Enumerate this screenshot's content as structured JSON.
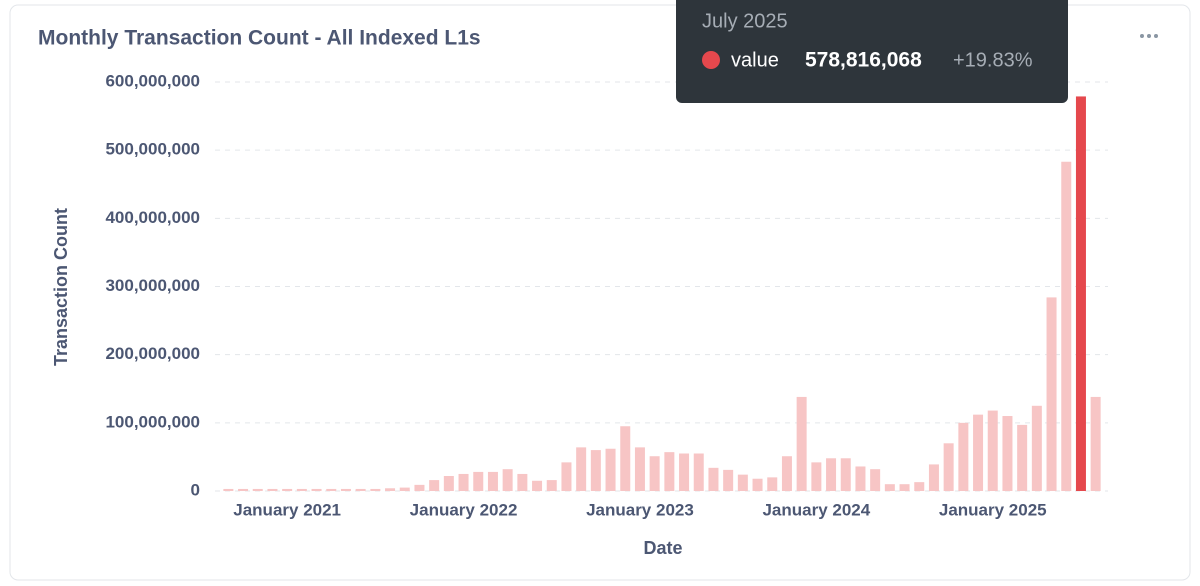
{
  "chart_data": {
    "type": "bar",
    "title": "Monthly Transaction Count - All Indexed L1s",
    "x_label": "Date",
    "y_label": "Transaction Count",
    "categories": [
      null,
      null,
      null,
      null,
      "January 2021",
      null,
      null,
      null,
      null,
      null,
      null,
      null,
      null,
      null,
      null,
      null,
      "January 2022",
      null,
      null,
      null,
      null,
      null,
      null,
      null,
      null,
      null,
      null,
      null,
      "January 2023",
      null,
      null,
      null,
      null,
      null,
      null,
      null,
      null,
      null,
      null,
      null,
      "January 2024",
      null,
      null,
      null,
      null,
      null,
      null,
      null,
      null,
      null,
      null,
      null,
      "January 2025",
      null,
      null,
      null,
      null,
      null,
      null,
      null
    ],
    "values": [
      3000000,
      3000000,
      3000000,
      3000000,
      3000000,
      3000000,
      3000000,
      3000000,
      3000000,
      3000000,
      3000000,
      4000000,
      5000000,
      9000000,
      16000000,
      22000000,
      25000000,
      28000000,
      28000000,
      32000000,
      25000000,
      15000000,
      16000000,
      42000000,
      64000000,
      60000000,
      62000000,
      95000000,
      64000000,
      51000000,
      57000000,
      55000000,
      55000000,
      34000000,
      31000000,
      24000000,
      18000000,
      20000000,
      51000000,
      138000000,
      42000000,
      48000000,
      48000000,
      36000000,
      32000000,
      10000000,
      10000000,
      13000000,
      39000000,
      70000000,
      100000000,
      112000000,
      118000000,
      110000000,
      97000000,
      125000000,
      284000000,
      483000000,
      578816068,
      138000000
    ],
    "color": "#f7c5c5",
    "highlight_color": "#e5484d",
    "ylim": [
      0,
      600000000
    ],
    "yticks": [
      0,
      {
        "value": 100000000,
        "label": "100,000,000"
      },
      {
        "value": 200000000,
        "label": "200,000,000"
      },
      {
        "value": 300000000,
        "label": "300,000,000"
      },
      {
        "value": 400000000,
        "label": "400,000,000"
      },
      {
        "value": 500000000,
        "label": "500,000,000"
      },
      {
        "value": 600000000,
        "label": "600,000,000"
      }
    ],
    "grid": true,
    "tooltip": {
      "category": "July 2025",
      "series": "value",
      "value": 578816068,
      "value_label": "578,816,068",
      "change": "+19.83%"
    }
  }
}
